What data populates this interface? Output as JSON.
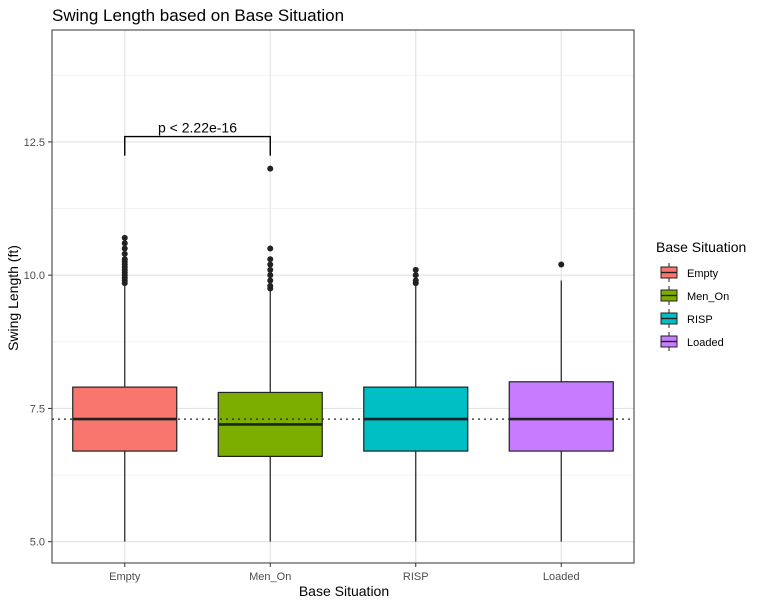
{
  "chart_data": {
    "type": "box",
    "title": "Swing Length based on Base Situation",
    "xlabel": "Base Situation",
    "ylabel": "Swing Length (ft)",
    "ylim": [
      4.6,
      14.6
    ],
    "yticks": [
      5.0,
      7.5,
      10.0,
      12.5
    ],
    "ytick_labels": [
      "5.0",
      "7.5",
      "10.0",
      "12.5"
    ],
    "grid": true,
    "categories": [
      "Empty",
      "Men_On",
      "RISP",
      "Loaded"
    ],
    "colors": [
      "#F8766D",
      "#7CAE00",
      "#00BFC4",
      "#C77CFF"
    ],
    "boxes": [
      {
        "name": "Empty",
        "whisker_low": 5.0,
        "q1": 6.7,
        "median": 7.3,
        "q3": 7.9,
        "whisker_high": 9.8,
        "outliers": [
          9.85,
          9.9,
          9.95,
          10.0,
          10.05,
          10.1,
          10.15,
          10.2,
          10.25,
          10.3,
          10.4,
          10.5,
          10.6,
          10.7
        ]
      },
      {
        "name": "Men_On",
        "whisker_low": 5.0,
        "q1": 6.6,
        "median": 7.2,
        "q3": 7.8,
        "whisker_high": 9.7,
        "outliers": [
          9.75,
          9.8,
          9.9,
          10.0,
          10.1,
          10.2,
          10.3,
          10.5,
          12.0
        ]
      },
      {
        "name": "RISP",
        "whisker_low": 5.0,
        "q1": 6.7,
        "median": 7.3,
        "q3": 7.9,
        "whisker_high": 9.8,
        "outliers": [
          9.85,
          9.9,
          10.0,
          10.1
        ]
      },
      {
        "name": "Loaded",
        "whisker_low": 5.0,
        "q1": 6.7,
        "median": 7.3,
        "q3": 8.0,
        "whisker_high": 9.9,
        "outliers": [
          10.2
        ]
      }
    ],
    "reference_line": {
      "y": 7.3,
      "style": "dotted"
    },
    "annotation": {
      "text": "p < 2.22e-16",
      "from": "Empty",
      "to": "Men_On",
      "y": 12.6
    },
    "legend": {
      "title": "Base Situation",
      "position": "right",
      "entries": [
        "Empty",
        "Men_On",
        "RISP",
        "Loaded"
      ]
    }
  }
}
